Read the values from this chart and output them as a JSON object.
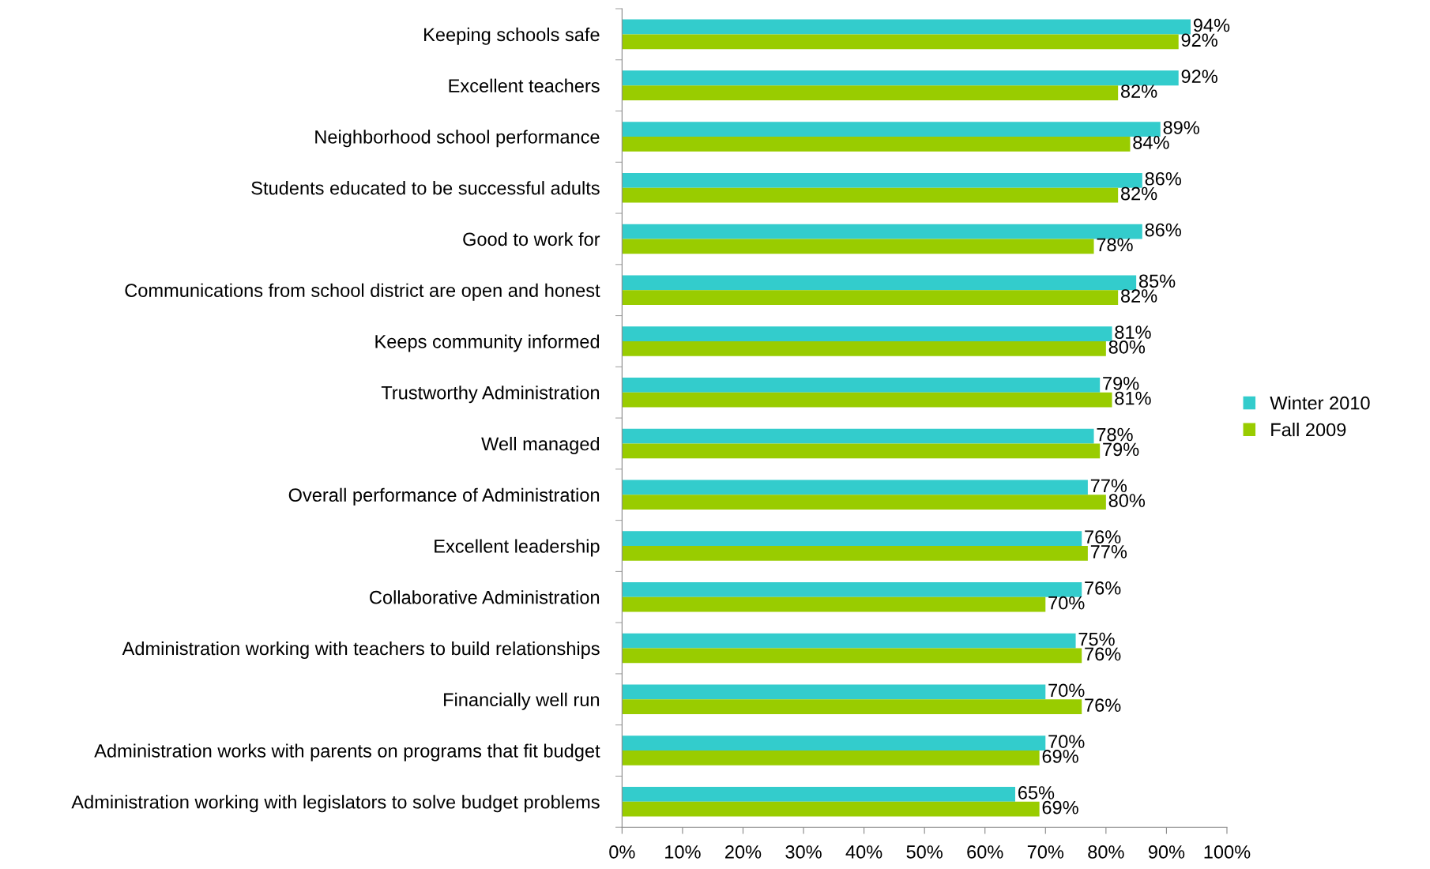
{
  "chart_data": {
    "type": "bar",
    "orientation": "horizontal",
    "categories": [
      "Keeping schools safe",
      "Excellent teachers",
      "Neighborhood school performance",
      "Students educated to be successful adults",
      "Good to work for",
      "Communications from school district are open and honest",
      "Keeps community informed",
      "Trustworthy Administration",
      "Well managed",
      "Overall performance of Administration",
      "Excellent leadership",
      "Collaborative Administration",
      "Administration working with teachers to build relationships",
      "Financially well run",
      "Administration works with parents on programs that fit budget",
      "Administration working with legislators to solve budget problems"
    ],
    "series": [
      {
        "name": "Winter 2010",
        "color": "#33cccc",
        "values": [
          94,
          92,
          89,
          86,
          86,
          85,
          81,
          79,
          78,
          77,
          76,
          76,
          75,
          70,
          70,
          65
        ],
        "value_labels": [
          "94%",
          "92%",
          "89%",
          "86%",
          "86%",
          "85%",
          "81%",
          "79%",
          "78%",
          "77%",
          "76%",
          "76%",
          "75%",
          "70%",
          "70%",
          "65%"
        ]
      },
      {
        "name": "Fall 2009",
        "color": "#99cc00",
        "values": [
          92,
          82,
          84,
          82,
          78,
          82,
          80,
          81,
          79,
          80,
          77,
          70,
          76,
          76,
          69,
          69
        ],
        "value_labels": [
          "92%",
          "82%",
          "84%",
          "82%",
          "78%",
          "82%",
          "80%",
          "81%",
          "79%",
          "80%",
          "77%",
          "70%",
          "76%",
          "76%",
          "69%",
          "69%"
        ]
      }
    ],
    "xlim": [
      0,
      100
    ],
    "xticks": [
      {
        "value": 0,
        "label": "0%"
      },
      {
        "value": 10,
        "label": "10%"
      },
      {
        "value": 20,
        "label": "20%"
      },
      {
        "value": 30,
        "label": "30%"
      },
      {
        "value": 40,
        "label": "40%"
      },
      {
        "value": 50,
        "label": "50%"
      },
      {
        "value": 60,
        "label": "60%"
      },
      {
        "value": 70,
        "label": "70%"
      },
      {
        "value": 80,
        "label": "80%"
      },
      {
        "value": 90,
        "label": "90%"
      },
      {
        "value": 100,
        "label": "100%"
      }
    ],
    "legend": "right",
    "grid": false
  }
}
